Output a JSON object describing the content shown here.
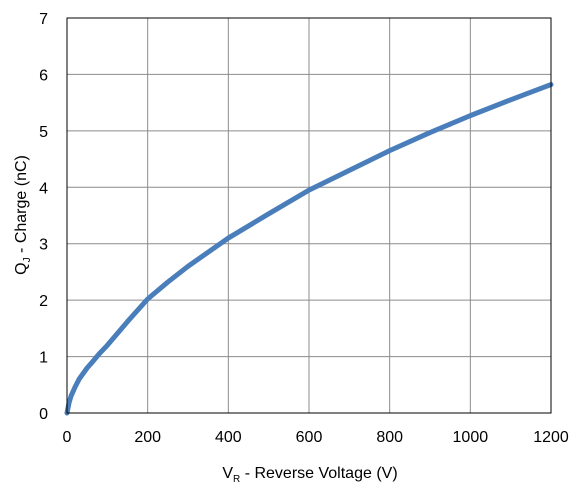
{
  "chart_data": {
    "type": "line",
    "xlabel": {
      "symbol": "V",
      "subscript": "R",
      "text": " - Reverse Voltage (V)"
    },
    "ylabel": {
      "symbol": "Q",
      "subscript": "J",
      "text": " - Charge (nC)"
    },
    "xlim": [
      0,
      1200
    ],
    "ylim": [
      0,
      7
    ],
    "xticks": [
      0,
      200,
      400,
      600,
      800,
      1000,
      1200
    ],
    "yticks": [
      0,
      1,
      2,
      3,
      4,
      5,
      6,
      7
    ],
    "xtick_labels": [
      "0",
      "200",
      "400",
      "600",
      "800",
      "1000",
      "1200"
    ],
    "ytick_labels": [
      "0",
      "1",
      "2",
      "3",
      "4",
      "5",
      "6",
      "7"
    ],
    "grid": true,
    "legend": false,
    "series": [
      {
        "color": "#4a7ebb",
        "x": [
          0,
          5,
          10,
          20,
          30,
          40,
          50,
          60,
          80,
          100,
          150,
          200,
          250,
          300,
          400,
          500,
          600,
          700,
          800,
          900,
          1000,
          1100,
          1200
        ],
        "y": [
          0,
          0.18,
          0.3,
          0.46,
          0.6,
          0.7,
          0.8,
          0.88,
          1.05,
          1.2,
          1.62,
          2.02,
          2.32,
          2.6,
          3.1,
          3.53,
          3.95,
          4.3,
          4.65,
          4.97,
          5.27,
          5.55,
          5.82
        ]
      }
    ]
  }
}
